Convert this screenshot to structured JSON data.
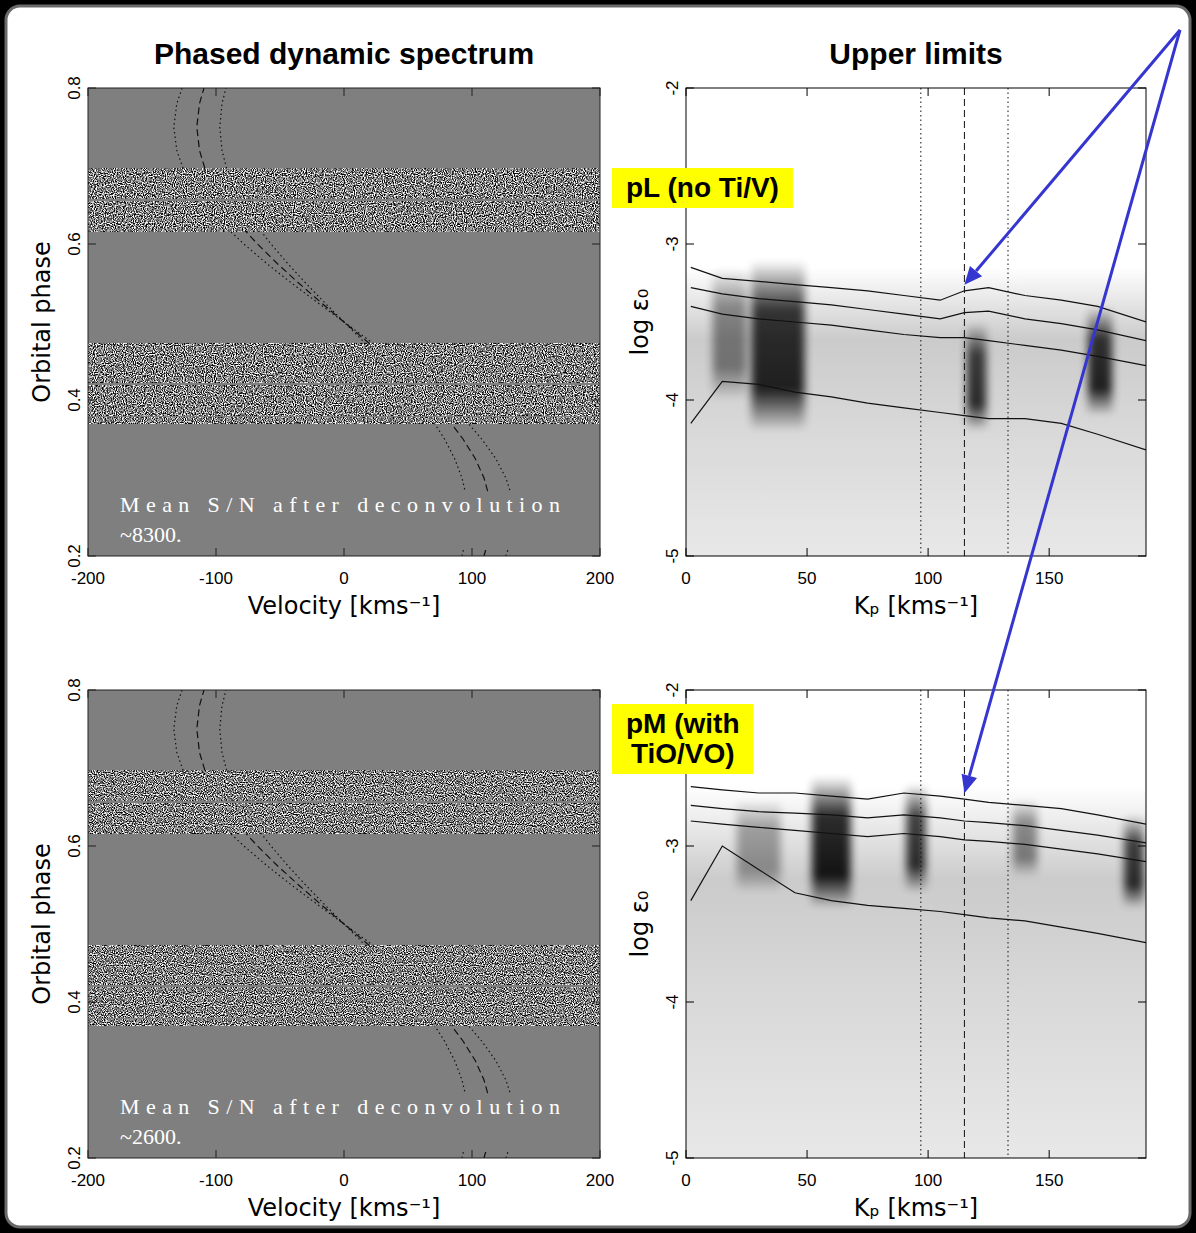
{
  "chart_data": [
    {
      "type": "dynamic_spectrum",
      "title": "Phased dynamic spectrum",
      "x_label": "Velocity [kms⁻¹]",
      "y_label": "Orbital phase",
      "xlim": [
        -200,
        200
      ],
      "ylim": [
        0.2,
        0.8
      ],
      "xticks": [
        -200,
        -100,
        0,
        100,
        200
      ],
      "yticks": [
        0.2,
        0.4,
        0.6,
        0.8
      ],
      "bands": [
        [
          0.37,
          0.378
        ],
        [
          0.38,
          0.419
        ],
        [
          0.423,
          0.472
        ],
        [
          0.616,
          0.654
        ],
        [
          0.658,
          0.697
        ]
      ],
      "y": [
        0.2,
        0.225,
        0.25,
        0.275,
        0.3,
        0.325,
        0.35,
        0.37,
        null,
        0.472,
        0.5,
        0.525,
        0.55,
        0.575,
        0.6,
        0.616,
        null,
        0.697,
        0.72,
        0.75,
        0.78,
        0.8
      ],
      "series": [
        {
          "line_style": "dotted",
          "x": [
            92.2,
            95.8,
            97,
            95.8,
            92.2,
            86.4,
            78.5,
            70.7,
            null,
            17.0,
            0,
            -15.2,
            -30.0,
            -44.0,
            -57.0,
            -64.6,
            null,
            -91.7,
            -95.3,
            -97,
            -95.3,
            -92.2
          ]
        },
        {
          "line_style": "dashed",
          "x": [
            109.4,
            113.6,
            115,
            113.6,
            109.4,
            102.5,
            93.0,
            83.8,
            null,
            20.1,
            0,
            -18.0,
            -35.5,
            -52.2,
            -67.6,
            -76.6,
            null,
            -108.7,
            -112.9,
            -115,
            -112.9,
            -109.4
          ]
        },
        {
          "line_style": "dotted",
          "x": [
            126.5,
            131.4,
            133,
            131.4,
            126.5,
            118.5,
            107.6,
            97.0,
            null,
            23.3,
            0,
            -20.8,
            -41.1,
            -60.4,
            -78.2,
            -88.6,
            null,
            -125.7,
            -130.6,
            -133,
            -130.6,
            -126.5
          ]
        }
      ],
      "annotation": "Mean S/N after deconvolution ~8300."
    },
    {
      "type": "contour",
      "title": "Upper limits",
      "x_label": "Kₚ [kms⁻¹]",
      "y_label": "log ε₀",
      "xlim": [
        0,
        190
      ],
      "ylim": [
        -5,
        -2
      ],
      "xticks": [
        0,
        50,
        100,
        150
      ],
      "yticks": [
        -5,
        -4,
        -3,
        -2
      ],
      "kp_lines": [
        {
          "value": 97,
          "line_style": "dotted"
        },
        {
          "value": 115,
          "line_style": "dashed"
        },
        {
          "value": 133,
          "line_style": "dotted"
        }
      ],
      "features": [
        {
          "kp": 18,
          "width": 14,
          "top": -3.15,
          "bottom": -4.0,
          "shade": 0.45
        },
        {
          "kp": 38,
          "width": 22,
          "top": -3.1,
          "bottom": -4.2,
          "shade": 0.85
        },
        {
          "kp": 120,
          "width": 8,
          "top": -3.5,
          "bottom": -4.2,
          "shade": 0.8
        },
        {
          "kp": 171,
          "width": 10,
          "top": -3.4,
          "bottom": -4.1,
          "shade": 0.85
        }
      ],
      "x": [
        2,
        15,
        30,
        45,
        60,
        75,
        90,
        105,
        115,
        125,
        140,
        155,
        170,
        190
      ],
      "series": [
        {
          "values": [
            -3.15,
            -3.22,
            -3.24,
            -3.26,
            -3.28,
            -3.3,
            -3.33,
            -3.36,
            -3.3,
            -3.28,
            -3.33,
            -3.36,
            -3.4,
            -3.5
          ]
        },
        {
          "values": [
            -3.28,
            -3.32,
            -3.35,
            -3.37,
            -3.39,
            -3.42,
            -3.45,
            -3.48,
            -3.44,
            -3.43,
            -3.48,
            -3.51,
            -3.55,
            -3.62
          ]
        },
        {
          "values": [
            -3.4,
            -3.45,
            -3.48,
            -3.5,
            -3.52,
            -3.55,
            -3.58,
            -3.6,
            -3.6,
            -3.62,
            -3.65,
            -3.68,
            -3.72,
            -3.78
          ]
        },
        {
          "values": [
            -4.15,
            -3.88,
            -3.9,
            -3.95,
            -3.98,
            -4.02,
            -4.05,
            -4.08,
            -4.1,
            -4.12,
            -4.12,
            -4.15,
            -4.22,
            -4.32
          ]
        }
      ],
      "annotation": "pL (no Ti/V)"
    },
    {
      "type": "dynamic_spectrum",
      "x_label": "Velocity [kms⁻¹]",
      "y_label": "Orbital phase",
      "xlim": [
        -200,
        200
      ],
      "ylim": [
        0.2,
        0.8
      ],
      "xticks": [
        -200,
        -100,
        0,
        100,
        200
      ],
      "yticks": [
        0.2,
        0.4,
        0.6,
        0.8
      ],
      "bands": [
        [
          0.37,
          0.378
        ],
        [
          0.38,
          0.419
        ],
        [
          0.423,
          0.472
        ],
        [
          0.616,
          0.654
        ],
        [
          0.658,
          0.697
        ]
      ],
      "y": [
        0.2,
        0.225,
        0.25,
        0.275,
        0.3,
        0.325,
        0.35,
        0.37,
        null,
        0.472,
        0.5,
        0.525,
        0.55,
        0.575,
        0.6,
        0.616,
        null,
        0.697,
        0.72,
        0.75,
        0.78,
        0.8
      ],
      "series": [
        {
          "line_style": "dotted",
          "x": [
            92.2,
            95.8,
            97,
            95.8,
            92.2,
            86.4,
            78.5,
            70.7,
            null,
            17.0,
            0,
            -15.2,
            -30.0,
            -44.0,
            -57.0,
            -64.6,
            null,
            -91.7,
            -95.3,
            -97,
            -95.3,
            -92.2
          ]
        },
        {
          "line_style": "dashed",
          "x": [
            109.4,
            113.6,
            115,
            113.6,
            109.4,
            102.5,
            93.0,
            83.8,
            null,
            20.1,
            0,
            -18.0,
            -35.5,
            -52.2,
            -67.6,
            -76.6,
            null,
            -108.7,
            -112.9,
            -115,
            -112.9,
            -109.4
          ]
        },
        {
          "line_style": "dotted",
          "x": [
            126.5,
            131.4,
            133,
            131.4,
            126.5,
            118.5,
            107.6,
            97.0,
            null,
            23.3,
            0,
            -20.8,
            -41.1,
            -60.4,
            -78.2,
            -88.6,
            null,
            -125.7,
            -130.6,
            -133,
            -130.6,
            -126.5
          ]
        }
      ],
      "annotation": "Mean S/N after deconvolution ~2600."
    },
    {
      "type": "contour",
      "x_label": "Kₚ [kms⁻¹]",
      "y_label": "log ε₀",
      "xlim": [
        0,
        190
      ],
      "ylim": [
        -5,
        -2
      ],
      "xticks": [
        0,
        50,
        100,
        150
      ],
      "yticks": [
        -5,
        -4,
        -3,
        -2
      ],
      "kp_lines": [
        {
          "value": 97,
          "line_style": "dotted"
        },
        {
          "value": 115,
          "line_style": "dashed"
        },
        {
          "value": 133,
          "line_style": "dotted"
        }
      ],
      "features": [
        {
          "kp": 30,
          "width": 18,
          "top": -2.7,
          "bottom": -3.3,
          "shade": 0.35
        },
        {
          "kp": 60,
          "width": 16,
          "top": -2.55,
          "bottom": -3.4,
          "shade": 0.9
        },
        {
          "kp": 95,
          "width": 8,
          "top": -2.6,
          "bottom": -3.3,
          "shade": 0.8
        },
        {
          "kp": 140,
          "width": 10,
          "top": -2.7,
          "bottom": -3.2,
          "shade": 0.45
        },
        {
          "kp": 185,
          "width": 8,
          "top": -2.8,
          "bottom": -3.4,
          "shade": 0.8
        }
      ],
      "x": [
        2,
        15,
        30,
        45,
        60,
        75,
        90,
        105,
        115,
        125,
        140,
        155,
        170,
        190
      ],
      "series": [
        {
          "values": [
            -2.62,
            -2.64,
            -2.66,
            -2.66,
            -2.68,
            -2.7,
            -2.66,
            -2.68,
            -2.7,
            -2.72,
            -2.74,
            -2.76,
            -2.8,
            -2.86
          ]
        },
        {
          "values": [
            -2.74,
            -2.76,
            -2.78,
            -2.79,
            -2.8,
            -2.82,
            -2.8,
            -2.82,
            -2.84,
            -2.85,
            -2.87,
            -2.9,
            -2.93,
            -2.98
          ]
        },
        {
          "values": [
            -2.84,
            -2.86,
            -2.88,
            -2.9,
            -2.92,
            -2.94,
            -2.92,
            -2.94,
            -2.96,
            -2.97,
            -2.99,
            -3.02,
            -3.05,
            -3.1
          ]
        },
        {
          "values": [
            -3.35,
            -3.0,
            -3.15,
            -3.3,
            -3.35,
            -3.38,
            -3.4,
            -3.42,
            -3.44,
            -3.46,
            -3.48,
            -3.52,
            -3.56,
            -3.62
          ]
        }
      ],
      "annotation": "pM (with TiO/VO)"
    }
  ]
}
